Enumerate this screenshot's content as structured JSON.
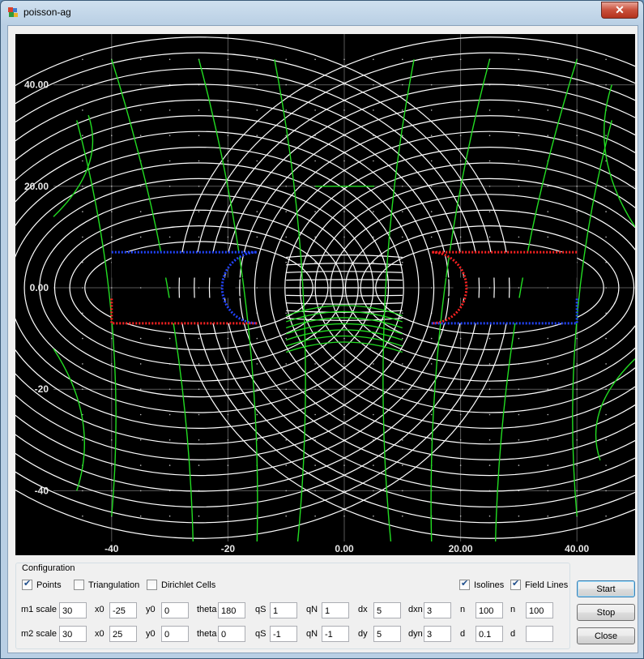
{
  "window": {
    "title": "poisson-ag",
    "close_glyph": "✕",
    "icon": "app-icon"
  },
  "plot": {
    "x_ticks": [
      "-40",
      "-20",
      "0.00",
      "20.00",
      "40.00"
    ],
    "y_ticks": [
      "40.00",
      "20.00",
      "0.00",
      "-20",
      "-40"
    ],
    "colors": {
      "background": "#000000",
      "isolines": "#ffffff",
      "field_lines": "#22dd22",
      "positive_boundary": "#ff2222",
      "negative_boundary": "#2244ff",
      "grid": "#ffffff"
    },
    "x_range": [
      -50,
      50
    ],
    "y_range": [
      -50,
      50
    ]
  },
  "config": {
    "title": "Configuration",
    "checkboxes": [
      {
        "label": "Points",
        "checked": true
      },
      {
        "label": "Triangulation",
        "checked": false
      },
      {
        "label": "Dirichlet Cells",
        "checked": false
      },
      {
        "label": "Isolines",
        "checked": true
      },
      {
        "label": "Field Lines",
        "checked": true
      }
    ],
    "row1": {
      "m_label": "m1 scale",
      "m_val": "30",
      "x0": "-25",
      "y0": "0",
      "theta": "180",
      "qS": "1",
      "qN": "1",
      "d_label": "dx",
      "d_val": "5",
      "dn_label": "dxn",
      "dn_val": "3",
      "n1_label": "n",
      "n1_val": "100",
      "n2_label": "n",
      "n2_val": "100"
    },
    "row2": {
      "m_label": "m2 scale",
      "m_val": "30",
      "x0": "25",
      "y0": "0",
      "theta": "0",
      "qS": "-1",
      "qN": "-1",
      "d_label": "dy",
      "d_val": "5",
      "dn_label": "dyn",
      "dn_val": "3",
      "n1_label": "d",
      "n1_val": "0.1",
      "n2_label": "d",
      "n2_val": ""
    },
    "labels": {
      "x0": "x0",
      "y0": "y0",
      "theta": "theta",
      "qS": "qS",
      "qN": "qN"
    }
  },
  "buttons": {
    "start": "Start",
    "stop": "Stop",
    "close": "Close"
  }
}
